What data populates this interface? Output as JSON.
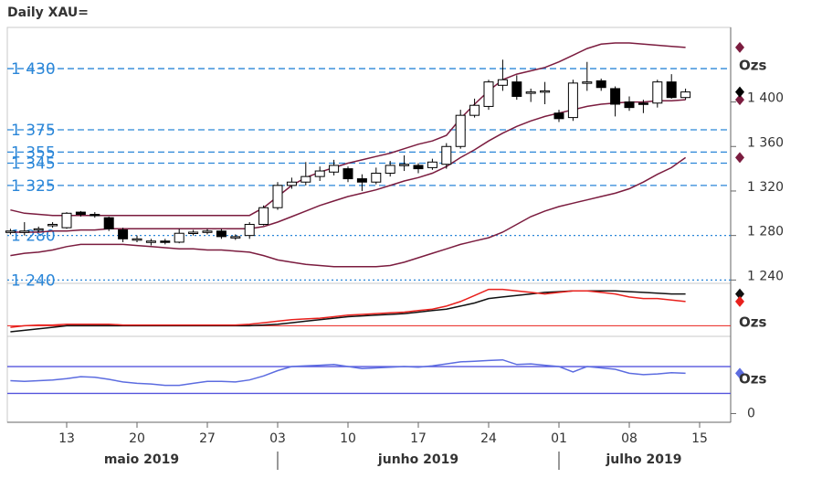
{
  "chart_data": [
    {
      "type": "candlestick",
      "title": "Daily XAU=",
      "categories": [
        null,
        null,
        null,
        null,
        "13",
        null,
        null,
        null,
        null,
        "20",
        null,
        null,
        null,
        null,
        "27",
        null,
        null,
        null,
        null,
        "03",
        null,
        null,
        null,
        null,
        "10",
        null,
        null,
        null,
        null,
        "17",
        null,
        null,
        null,
        null,
        "24",
        null,
        null,
        null,
        null,
        "01",
        null,
        null,
        null,
        null,
        "08",
        null,
        null,
        null,
        null,
        "15"
      ],
      "open": [
        1283,
        1284,
        1285,
        1289,
        1287,
        1301,
        1299,
        1296,
        1285,
        1276,
        1274,
        1275,
        1274,
        1282,
        1283,
        1284,
        1278,
        1280,
        1290,
        1305,
        1325,
        1328,
        1333,
        1337,
        1340,
        1331,
        1328,
        1336,
        1343,
        1343,
        1341,
        1344,
        1360,
        1388,
        1396,
        1415,
        1418,
        1408,
        1410,
        1390,
        1386,
        1418,
        1419,
        1412,
        1400,
        1399,
        1399,
        1418,
        1404,
        null
      ],
      "high": [
        1286,
        1292,
        1288,
        1292,
        1301,
        1302,
        1301,
        1297,
        1287,
        1280,
        1277,
        1277,
        1286,
        1285,
        1286,
        1286,
        1281,
        1292,
        1307,
        1328,
        1332,
        1346,
        1342,
        1348,
        1342,
        1335,
        1341,
        1347,
        1352,
        1345,
        1349,
        1363,
        1393,
        1403,
        1420,
        1438,
        1424,
        1412,
        1418,
        1393,
        1420,
        1436,
        1421,
        1414,
        1405,
        1402,
        1420,
        1425,
        1412,
        null
      ],
      "low": [
        1281,
        1280,
        1283,
        1287,
        1286,
        1297,
        1296,
        1284,
        1274,
        1274,
        1271,
        1272,
        1273,
        1280,
        1281,
        1277,
        1276,
        1277,
        1289,
        1303,
        1322,
        1325,
        1329,
        1334,
        1328,
        1320,
        1326,
        1333,
        1338,
        1336,
        1339,
        1340,
        1358,
        1386,
        1393,
        1410,
        1402,
        1400,
        1398,
        1382,
        1383,
        1410,
        1410,
        1387,
        1392,
        1390,
        1395,
        1403,
        1402,
        null
      ],
      "close": [
        1284,
        1284,
        1286,
        1290,
        1300,
        1299,
        1298,
        1286,
        1277,
        1277,
        1275,
        1274,
        1282,
        1283,
        1284,
        1279,
        1279,
        1290,
        1305,
        1325,
        1328,
        1333,
        1338,
        1343,
        1331,
        1328,
        1336,
        1343,
        1344,
        1340,
        1346,
        1360,
        1388,
        1397,
        1418,
        1420,
        1405,
        1409,
        1410,
        1385,
        1417,
        1418,
        1413,
        1398,
        1395,
        1398,
        1418,
        1404,
        1409,
        null
      ],
      "overlays": [
        {
          "color": "#7b1c3f",
          "values": [
            1303,
            1300,
            1299,
            1298,
            1298,
            1298,
            1298,
            1298,
            1298,
            1298,
            1298,
            1298,
            1298,
            1298,
            1298,
            1298,
            1298,
            1298,
            1305,
            1315,
            1325,
            1332,
            1337,
            1341,
            1345,
            1348,
            1351,
            1354,
            1358,
            1362,
            1365,
            1370,
            1385,
            1398,
            1410,
            1420,
            1425,
            1428,
            1431,
            1436,
            1442,
            1448,
            1452,
            1453,
            1453,
            1452,
            1451,
            1450,
            1449,
            null
          ]
        },
        {
          "color": "#7b1c3f",
          "values": [
            1283,
            1283,
            1283,
            1284,
            1284,
            1285,
            1285,
            1286,
            1286,
            1286,
            1286,
            1286,
            1286,
            1286,
            1286,
            1286,
            1286,
            1286,
            1288,
            1292,
            1297,
            1302,
            1307,
            1311,
            1315,
            1318,
            1321,
            1325,
            1329,
            1332,
            1336,
            1342,
            1350,
            1357,
            1365,
            1372,
            1378,
            1383,
            1387,
            1390,
            1393,
            1396,
            1398,
            1399,
            1400,
            1400,
            1401,
            1401,
            1402,
            null
          ]
        },
        {
          "color": "#7b1c3f",
          "values": [
            1262,
            1264,
            1265,
            1267,
            1270,
            1272,
            1272,
            1272,
            1272,
            1271,
            1270,
            1269,
            1268,
            1268,
            1267,
            1267,
            1266,
            1265,
            1262,
            1258,
            1256,
            1254,
            1253,
            1252,
            1252,
            1252,
            1252,
            1253,
            1256,
            1260,
            1264,
            1268,
            1272,
            1275,
            1278,
            1283,
            1290,
            1297,
            1302,
            1306,
            1309,
            1312,
            1315,
            1318,
            1322,
            1328,
            1335,
            1341,
            1350,
            null
          ]
        }
      ],
      "levels": [
        {
          "value": 1430,
          "label": "1 430",
          "style": "dashed"
        },
        {
          "value": 1375,
          "label": "1 375",
          "style": "dashed"
        },
        {
          "value": 1355,
          "label": "1 355",
          "style": "dashed"
        },
        {
          "value": 1345,
          "label": "1 345",
          "style": "dashed"
        },
        {
          "value": 1325,
          "label": "1 325",
          "style": "dashed"
        },
        {
          "value": 1280,
          "label": "1 280",
          "style": "dotted"
        },
        {
          "value": 1240,
          "label": "1 240",
          "style": "dotted"
        }
      ],
      "level_color": "#2a86d8",
      "ylim": [
        1237,
        1467
      ],
      "yticks": [
        {
          "value": 1240,
          "label": "1 240"
        },
        {
          "value": 1280,
          "label": "1 280"
        },
        {
          "value": 1320,
          "label": "1 320"
        },
        {
          "value": 1360,
          "label": "1 360"
        },
        {
          "value": 1400,
          "label": "1 400"
        }
      ],
      "months": [
        "maio 2019",
        "junho 2019",
        "julho 2019"
      ],
      "legend_label": "Ozs"
    },
    {
      "type": "line",
      "series": [
        {
          "color": "#111111",
          "values": [
            -4,
            -3,
            -2,
            -1,
            0,
            0,
            0,
            0,
            0,
            0,
            0,
            0,
            0,
            0,
            0,
            0,
            0,
            0,
            0.5,
            1,
            2,
            3,
            4,
            5,
            6,
            6.5,
            7,
            7.5,
            8,
            9,
            10,
            11,
            13,
            15,
            18,
            19,
            20,
            21,
            22,
            22.5,
            23,
            23,
            23,
            23,
            22.5,
            22,
            21.5,
            21,
            21,
            null
          ]
        },
        {
          "color": "#e8201c",
          "values": [
            -1,
            0,
            0.5,
            0.5,
            1,
            1,
            1,
            1,
            0.5,
            0.5,
            0.5,
            0.5,
            0.5,
            0.5,
            0.5,
            0.5,
            0.5,
            1,
            2,
            3,
            4,
            4.5,
            5,
            6,
            7,
            7.5,
            8,
            8.5,
            9,
            10,
            11,
            13,
            16,
            20,
            24,
            24,
            23,
            22,
            21,
            22,
            23,
            23,
            22,
            21,
            19,
            18,
            18,
            17,
            16,
            null
          ]
        }
      ],
      "hline": 0,
      "hline_color": "#e8201c",
      "ylim": [
        -7,
        28
      ]
    },
    {
      "type": "line",
      "series": [
        {
          "color": "#5c6ce0",
          "values": [
            49,
            48,
            49,
            50,
            52,
            55,
            54,
            51,
            47,
            45,
            44,
            42,
            42,
            45,
            48,
            48,
            47,
            50,
            56,
            64,
            70,
            71,
            72,
            73,
            70,
            67,
            68,
            69,
            70,
            69,
            71,
            74,
            77,
            78,
            79,
            80,
            73,
            74,
            72,
            70,
            62,
            70,
            68,
            66,
            60,
            58,
            59,
            61,
            60,
            null
          ]
        }
      ],
      "levels": [
        70,
        30
      ],
      "level_color": "#5555dd",
      "ylim": [
        -13,
        115
      ],
      "yticks": [
        0
      ]
    }
  ]
}
